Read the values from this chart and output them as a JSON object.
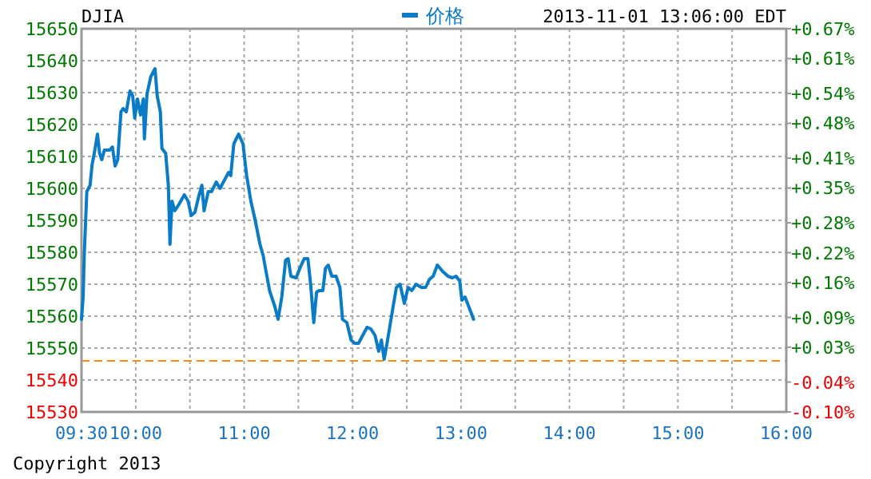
{
  "chart_data": {
    "type": "line",
    "title": "DJIA",
    "subtitle": "2013-11-01 13:06:00 EDT",
    "annotations": [
      "Copyright 2013"
    ],
    "legend": "top",
    "grid": true,
    "line_style": "solid",
    "marker": "none",
    "xlim": [
      9.5,
      16
    ],
    "xticks": [
      {
        "value": 9.5,
        "label": "09:30"
      },
      {
        "value": 10,
        "label": "10:00"
      },
      {
        "value": 10.5,
        "label": null
      },
      {
        "value": 11,
        "label": "11:00"
      },
      {
        "value": 11.5,
        "label": null
      },
      {
        "value": 12,
        "label": "12:00"
      },
      {
        "value": 12.5,
        "label": null
      },
      {
        "value": 13,
        "label": "13:00"
      },
      {
        "value": 13.5,
        "label": null
      },
      {
        "value": 14,
        "label": "14:00"
      },
      {
        "value": 14.5,
        "label": null
      },
      {
        "value": 15,
        "label": "15:00"
      },
      {
        "value": 15.5,
        "label": null
      },
      {
        "value": 16,
        "label": "16:00"
      }
    ],
    "ylim": [
      15530,
      15650
    ],
    "yticks": [
      15530,
      15540,
      15550,
      15560,
      15570,
      15580,
      15590,
      15600,
      15610,
      15620,
      15630,
      15640,
      15650
    ],
    "y2lim": [
      -0.1,
      0.67
    ],
    "y2ticks": [
      {
        "value": -0.1,
        "label": "-0.10%"
      },
      {
        "value": -0.04,
        "label": "-0.04%"
      },
      {
        "value": 0.03,
        "label": "+0.03%"
      },
      {
        "value": 0.09,
        "label": "+0.09%"
      },
      {
        "value": 0.16,
        "label": "+0.16%"
      },
      {
        "value": 0.22,
        "label": "+0.22%"
      },
      {
        "value": 0.28,
        "label": "+0.28%"
      },
      {
        "value": 0.35,
        "label": "+0.35%"
      },
      {
        "value": 0.41,
        "label": "+0.41%"
      },
      {
        "value": 0.48,
        "label": "+0.48%"
      },
      {
        "value": 0.54,
        "label": "+0.54%"
      },
      {
        "value": 0.61,
        "label": "+0.61%"
      },
      {
        "value": 0.67,
        "label": "+0.67%"
      }
    ],
    "ref_lines": [
      {
        "axis": "y",
        "value": 15546,
        "label": null,
        "color": "#ff8c00",
        "line_style": "dashed"
      }
    ],
    "series": [
      {
        "name": "价格",
        "color": "#0a7bc7",
        "x": [
          9.5,
          9.515,
          9.525,
          9.549,
          9.579,
          9.598,
          9.618,
          9.647,
          9.667,
          9.687,
          9.711,
          9.76,
          9.785,
          9.81,
          9.834,
          9.864,
          9.883,
          9.913,
          9.947,
          9.972,
          9.991,
          10.016,
          10.045,
          10.07,
          10.08,
          10.104,
          10.139,
          10.178,
          10.198,
          10.227,
          10.242,
          10.276,
          10.301,
          10.316,
          10.335,
          10.36,
          10.399,
          10.448,
          10.483,
          10.512,
          10.546,
          10.581,
          10.61,
          10.63,
          10.669,
          10.699,
          10.743,
          10.777,
          10.817,
          10.856,
          10.876,
          10.905,
          10.949,
          10.989,
          11.023,
          11.062,
          11.102,
          11.146,
          11.175,
          11.21,
          11.234,
          11.283,
          11.313,
          11.347,
          11.382,
          11.406,
          11.431,
          11.48,
          11.514,
          11.554,
          11.588,
          11.613,
          11.642,
          11.668,
          11.691,
          11.726,
          11.75,
          11.775,
          11.809,
          11.848,
          11.883,
          11.907,
          11.947,
          11.986,
          12.02,
          12.055,
          12.094,
          12.133,
          12.168,
          12.207,
          12.241,
          12.266,
          12.291,
          12.315,
          12.34,
          12.374,
          12.404,
          12.438,
          12.477,
          12.512,
          12.546,
          12.585,
          12.635,
          12.674,
          12.708,
          12.743,
          12.782,
          12.831,
          12.88,
          12.92,
          12.954,
          12.988,
          13.008,
          13.037,
          13.077,
          13.116
        ],
        "values": [
          15559,
          15566,
          15579,
          15599,
          15601,
          15607.5,
          15611,
          15617,
          15611,
          15609,
          15612,
          15612,
          15613,
          15607,
          15609,
          15624,
          15625,
          15624,
          15630.5,
          15629,
          15622,
          15628,
          15623,
          15628,
          15615.5,
          15629.5,
          15635,
          15637.5,
          15629,
          15624,
          15612.5,
          15611,
          15601,
          15582.5,
          15596,
          15593,
          15595,
          15598,
          15596,
          15591.5,
          15592.5,
          15597.5,
          15601,
          15593,
          15599,
          15599,
          15602,
          15600,
          15602.5,
          15605,
          15604,
          15614,
          15617,
          15614,
          15604,
          15596,
          15590,
          15582.5,
          15579,
          15572.5,
          15568,
          15563,
          15559,
          15566,
          15577.5,
          15578,
          15572.5,
          15572,
          15575,
          15578,
          15578,
          15570,
          15558,
          15567.5,
          15568,
          15568,
          15575,
          15576,
          15572.5,
          15572.5,
          15569,
          15559,
          15558,
          15552.5,
          15551.5,
          15551.5,
          15554,
          15556.5,
          15556,
          15554,
          15549,
          15552.5,
          15546.5,
          15551,
          15556,
          15563,
          15569,
          15570,
          15564,
          15569,
          15568,
          15570,
          15569,
          15569,
          15571.5,
          15572.5,
          15576,
          15574,
          15572.5,
          15572,
          15572.5,
          15571,
          15565,
          15566,
          15562.5,
          15559
        ]
      }
    ]
  }
}
